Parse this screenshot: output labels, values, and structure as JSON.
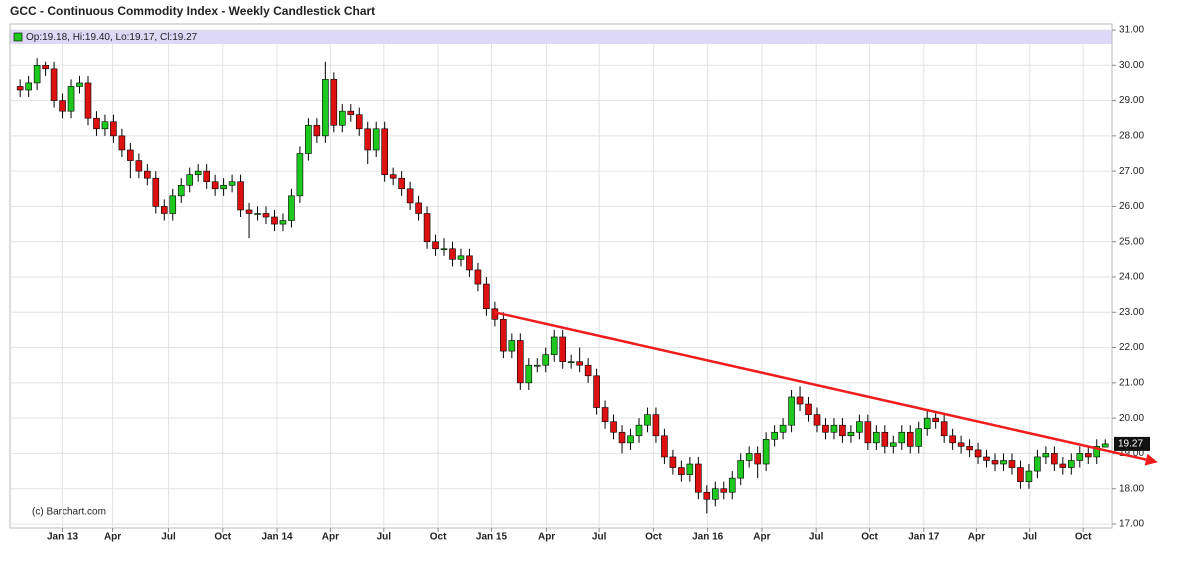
{
  "chart_data": {
    "type": "candlestick",
    "title": "GCC - Continuous Commodity Index - Weekly Candlestick Chart",
    "header_label": "Op:19.18, Hi:19.40, Lo:19.17, Cl:19.27",
    "credit": "(c) Barchart.com",
    "up_color": "#1ec81e",
    "down_color": "#dd1111",
    "grid": true,
    "open": [
      29.4,
      29.3,
      29.5,
      30.0,
      29.9,
      29.0,
      28.7,
      29.4,
      29.5,
      28.5,
      28.2,
      28.4,
      28.0,
      27.6,
      27.3,
      27.0,
      26.8,
      26.0,
      25.8,
      26.3,
      26.6,
      26.9,
      27.0,
      26.7,
      26.5,
      26.6,
      26.7,
      25.9,
      25.8,
      25.8,
      25.7,
      25.5,
      25.6,
      26.3,
      27.5,
      28.3,
      28.0,
      29.6,
      28.3,
      28.7,
      28.6,
      28.2,
      27.6,
      28.2,
      26.9,
      26.8,
      26.5,
      26.1,
      25.8,
      25.0,
      24.8,
      24.8,
      24.5,
      24.6,
      24.2,
      23.8,
      23.1,
      22.8,
      21.9,
      22.2,
      21.0,
      21.5,
      21.5,
      21.8,
      22.3,
      21.6,
      21.6,
      21.5,
      21.2,
      20.3,
      19.9,
      19.6,
      19.3,
      19.5,
      19.8,
      20.1,
      19.5,
      18.9,
      18.6,
      18.4,
      18.7,
      17.9,
      17.7,
      18.0,
      17.9,
      18.3,
      18.8,
      19.0,
      18.7,
      19.4,
      19.6,
      19.8,
      20.6,
      20.4,
      20.1,
      19.8,
      19.6,
      19.8,
      19.5,
      19.6,
      19.9,
      19.3,
      19.6,
      19.2,
      19.3,
      19.6,
      19.2,
      19.7,
      20.0,
      19.9,
      19.5,
      19.3,
      19.2,
      19.1,
      18.9,
      18.8,
      18.7,
      18.8,
      18.6,
      18.2,
      18.5,
      18.9,
      19.0,
      18.7,
      18.6,
      18.8,
      19.0,
      18.9,
      19.18
    ],
    "high": [
      29.6,
      29.7,
      30.2,
      30.1,
      30.1,
      29.2,
      29.6,
      29.7,
      29.7,
      28.7,
      28.6,
      28.6,
      28.2,
      27.8,
      27.5,
      27.2,
      27.0,
      26.2,
      26.5,
      26.8,
      27.1,
      27.2,
      27.2,
      26.9,
      26.8,
      26.9,
      26.9,
      26.1,
      26.0,
      26.0,
      25.9,
      25.8,
      26.5,
      27.7,
      28.5,
      28.5,
      30.1,
      29.8,
      28.9,
      28.9,
      28.8,
      28.4,
      28.4,
      28.4,
      27.1,
      27.0,
      26.7,
      26.3,
      26.0,
      25.2,
      25.1,
      25.0,
      24.8,
      24.8,
      24.4,
      24.0,
      23.3,
      23.0,
      22.4,
      22.4,
      21.7,
      21.7,
      22.0,
      22.5,
      22.5,
      21.8,
      22.0,
      21.7,
      21.4,
      20.5,
      20.1,
      19.8,
      19.7,
      20.0,
      20.3,
      20.3,
      19.7,
      19.1,
      18.8,
      18.9,
      18.9,
      18.1,
      18.2,
      18.2,
      18.5,
      19.0,
      19.2,
      19.2,
      19.6,
      19.8,
      20.0,
      20.8,
      20.9,
      20.6,
      20.3,
      20.0,
      20.0,
      20.0,
      19.8,
      20.1,
      20.1,
      19.8,
      19.8,
      19.5,
      19.8,
      19.8,
      19.9,
      20.2,
      20.2,
      20.1,
      19.7,
      19.5,
      19.4,
      19.3,
      19.1,
      19.0,
      19.0,
      19.0,
      18.8,
      18.7,
      19.1,
      19.2,
      19.2,
      18.9,
      19.0,
      19.2,
      19.2,
      19.4,
      19.4
    ],
    "low": [
      29.1,
      29.1,
      29.3,
      29.7,
      28.8,
      28.5,
      28.5,
      29.2,
      28.3,
      28.0,
      28.0,
      27.8,
      27.4,
      26.8,
      26.8,
      26.6,
      25.8,
      25.6,
      25.6,
      26.1,
      26.4,
      26.7,
      26.5,
      26.3,
      26.3,
      26.4,
      25.7,
      25.1,
      25.6,
      25.5,
      25.3,
      25.3,
      25.4,
      26.1,
      27.3,
      27.8,
      27.8,
      28.1,
      28.1,
      28.4,
      28.0,
      27.2,
      27.4,
      26.7,
      26.6,
      26.3,
      25.9,
      25.6,
      24.8,
      24.6,
      24.6,
      24.3,
      24.3,
      24.0,
      23.6,
      22.9,
      22.6,
      21.7,
      21.7,
      20.8,
      20.8,
      21.3,
      21.3,
      21.6,
      21.4,
      21.4,
      21.3,
      21.0,
      20.1,
      19.7,
      19.4,
      19.0,
      19.1,
      19.3,
      19.6,
      19.3,
      18.7,
      18.4,
      18.2,
      18.2,
      17.7,
      17.3,
      17.5,
      17.7,
      17.7,
      18.1,
      18.6,
      18.3,
      18.5,
      19.2,
      19.4,
      19.6,
      20.2,
      19.9,
      19.6,
      19.4,
      19.4,
      19.3,
      19.3,
      19.4,
      19.1,
      19.1,
      19.0,
      19.0,
      19.1,
      19.0,
      19.0,
      19.5,
      19.7,
      19.3,
      19.1,
      19.0,
      18.9,
      18.7,
      18.6,
      18.5,
      18.5,
      18.4,
      18.0,
      18.0,
      18.3,
      18.7,
      18.5,
      18.4,
      18.4,
      18.6,
      18.7,
      18.7,
      19.17
    ],
    "close": [
      29.3,
      29.5,
      30.0,
      29.9,
      29.0,
      28.7,
      29.4,
      29.5,
      28.5,
      28.2,
      28.4,
      28.0,
      27.6,
      27.3,
      27.0,
      26.8,
      26.0,
      25.8,
      26.3,
      26.6,
      26.9,
      27.0,
      26.7,
      26.5,
      26.6,
      26.7,
      25.9,
      25.8,
      25.8,
      25.7,
      25.5,
      25.6,
      26.3,
      27.5,
      28.3,
      28.0,
      29.6,
      28.3,
      28.7,
      28.6,
      28.2,
      27.6,
      28.2,
      26.9,
      26.8,
      26.5,
      26.1,
      25.8,
      25.0,
      24.8,
      24.8,
      24.5,
      24.6,
      24.2,
      23.8,
      23.1,
      22.8,
      21.9,
      22.2,
      21.0,
      21.5,
      21.5,
      21.8,
      22.3,
      21.6,
      21.6,
      21.5,
      21.2,
      20.3,
      19.9,
      19.6,
      19.3,
      19.5,
      19.8,
      20.1,
      19.5,
      18.9,
      18.6,
      18.4,
      18.7,
      17.9,
      17.7,
      18.0,
      17.9,
      18.3,
      18.8,
      19.0,
      18.7,
      19.4,
      19.6,
      19.8,
      20.6,
      20.4,
      20.1,
      19.8,
      19.6,
      19.8,
      19.5,
      19.6,
      19.9,
      19.3,
      19.6,
      19.2,
      19.3,
      19.6,
      19.2,
      19.7,
      20.0,
      19.9,
      19.5,
      19.3,
      19.2,
      19.1,
      18.9,
      18.8,
      18.7,
      18.8,
      18.6,
      18.2,
      18.5,
      18.9,
      19.0,
      18.7,
      18.6,
      18.8,
      19.0,
      18.9,
      19.2,
      19.27
    ],
    "xlim": [
      -1.2,
      128.8
    ],
    "xticks": [
      {
        "value": 5,
        "label": "Jan 13"
      },
      {
        "value": 10.9,
        "label": "Apr"
      },
      {
        "value": 17.5,
        "label": "Jul"
      },
      {
        "value": 23.9,
        "label": "Oct"
      },
      {
        "value": 30.3,
        "label": "Jan 14"
      },
      {
        "value": 36.6,
        "label": "Apr"
      },
      {
        "value": 42.9,
        "label": "Jul"
      },
      {
        "value": 49.3,
        "label": "Oct"
      },
      {
        "value": 55.6,
        "label": "Jan 15"
      },
      {
        "value": 62.1,
        "label": "Apr"
      },
      {
        "value": 68.3,
        "label": "Jul"
      },
      {
        "value": 74.7,
        "label": "Oct"
      },
      {
        "value": 81.1,
        "label": "Jan 16"
      },
      {
        "value": 87.5,
        "label": "Apr"
      },
      {
        "value": 93.9,
        "label": "Jul"
      },
      {
        "value": 100.2,
        "label": "Oct"
      },
      {
        "value": 106.6,
        "label": "Jan 17"
      },
      {
        "value": 112.8,
        "label": "Apr"
      },
      {
        "value": 119.1,
        "label": "Jul"
      },
      {
        "value": 125.4,
        "label": "Oct"
      }
    ],
    "ylim": [
      17,
      31
    ],
    "yticks": [
      {
        "value": 17,
        "label": "17.00"
      },
      {
        "value": 18,
        "label": "18.00"
      },
      {
        "value": 19,
        "label": "19.00"
      },
      {
        "value": 20,
        "label": "20.00"
      },
      {
        "value": 21,
        "label": "21.00"
      },
      {
        "value": 22,
        "label": "22.00"
      },
      {
        "value": 23,
        "label": "23.00"
      },
      {
        "value": 24,
        "label": "24.00"
      },
      {
        "value": 25,
        "label": "25.00"
      },
      {
        "value": 26,
        "label": "26.00"
      },
      {
        "value": 27,
        "label": "27.00"
      },
      {
        "value": 28,
        "label": "28.00"
      },
      {
        "value": 29,
        "label": "29.00"
      },
      {
        "value": 30,
        "label": "30.00"
      },
      {
        "value": 31,
        "label": "31.00"
      }
    ],
    "trendline": {
      "x": [
        56,
        134.2
      ],
      "y": [
        23.0,
        18.75
      ],
      "color": "#ee1c1c"
    }
  }
}
